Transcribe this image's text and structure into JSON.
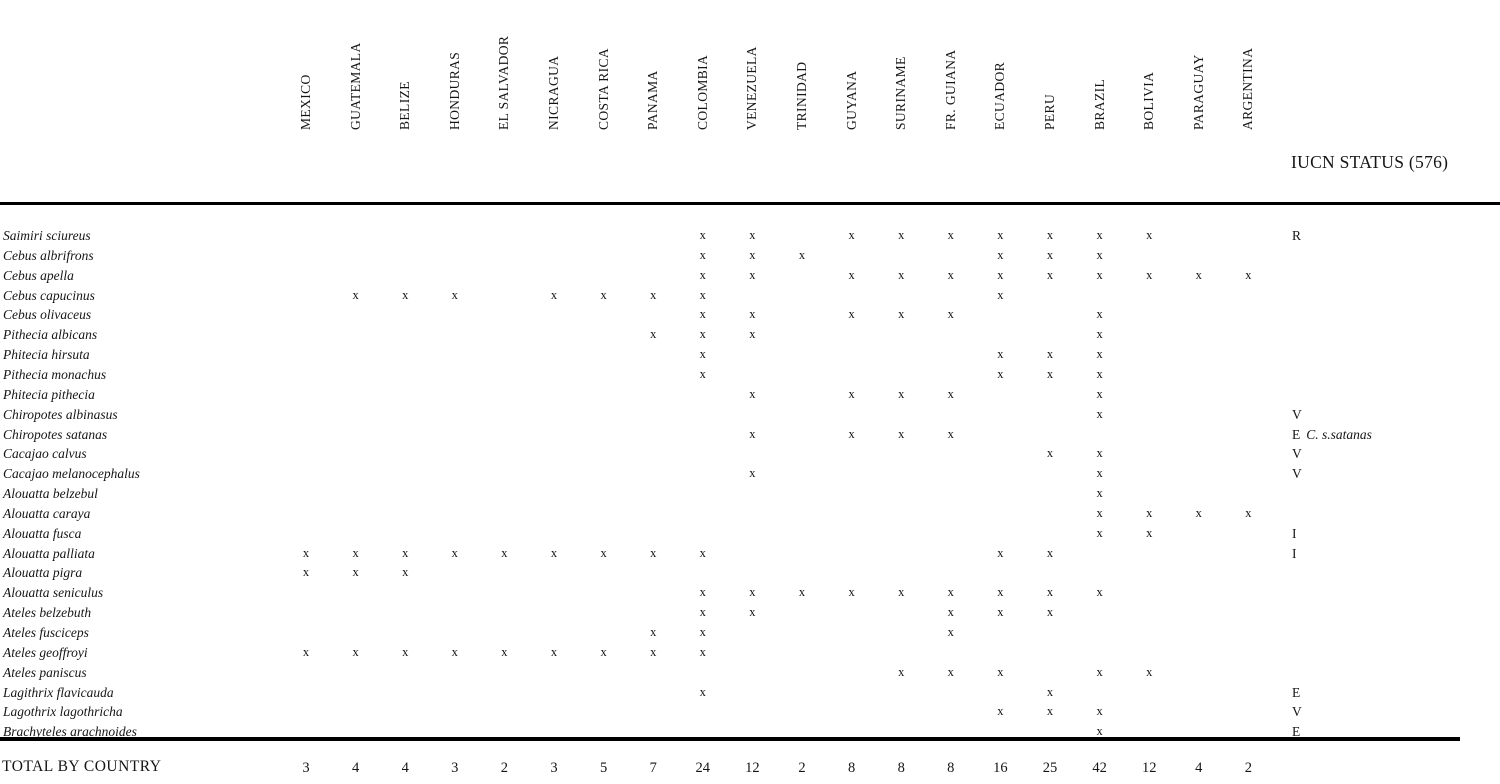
{
  "header": {
    "countries": [
      "MEXICO",
      "GUATEMALA",
      "BELIZE",
      "HONDURAS",
      "EL SALVADOR",
      "NICRAGUA",
      "COSTA RICA",
      "PANAMA",
      "COLOMBIA",
      "VENEZUELA",
      "TRINIDAD",
      "GUYANA",
      "SURINAME",
      "FR. GUIANA",
      "ECUADOR",
      "PERU",
      "BRAZIL",
      "BOLIVIA",
      "PARAGUAY",
      "ARGENTINA"
    ],
    "iucn_label": "IUCN STATUS (576)"
  },
  "table": {
    "mark_glyph": "x",
    "species": [
      {
        "name": "Saimiri sciureus",
        "countries": [
          "COLOMBIA",
          "VENEZUELA",
          "GUYANA",
          "SURINAME",
          "FR. GUIANA",
          "ECUADOR",
          "PERU",
          "BRAZIL",
          "BOLIVIA"
        ],
        "iucn": "R"
      },
      {
        "name": "Cebus albrifrons",
        "countries": [
          "COLOMBIA",
          "VENEZUELA",
          "TRINIDAD",
          "ECUADOR",
          "PERU",
          "BRAZIL"
        ],
        "iucn": ""
      },
      {
        "name": "Cebus apella",
        "countries": [
          "COLOMBIA",
          "VENEZUELA",
          "GUYANA",
          "SURINAME",
          "FR. GUIANA",
          "ECUADOR",
          "PERU",
          "BRAZIL",
          "BOLIVIA",
          "PARAGUAY",
          "ARGENTINA"
        ],
        "iucn": ""
      },
      {
        "name": "Cebus capucinus",
        "countries": [
          "GUATEMALA",
          "BELIZE",
          "HONDURAS",
          "NICRAGUA",
          "COSTA RICA",
          "PANAMA",
          "COLOMBIA",
          "ECUADOR"
        ],
        "iucn": ""
      },
      {
        "name": "Cebus olivaceus",
        "countries": [
          "COLOMBIA",
          "VENEZUELA",
          "GUYANA",
          "SURINAME",
          "FR. GUIANA",
          "BRAZIL"
        ],
        "iucn": ""
      },
      {
        "name": "Pithecia albicans",
        "countries": [
          "PANAMA",
          "COLOMBIA",
          "VENEZUELA",
          "BRAZIL"
        ],
        "iucn": ""
      },
      {
        "name": "Phitecia hirsuta",
        "countries": [
          "COLOMBIA",
          "ECUADOR",
          "PERU",
          "BRAZIL"
        ],
        "iucn": ""
      },
      {
        "name": "Pithecia monachus",
        "countries": [
          "COLOMBIA",
          "ECUADOR",
          "PERU",
          "BRAZIL"
        ],
        "iucn": ""
      },
      {
        "name": "Phitecia pithecia",
        "countries": [
          "VENEZUELA",
          "GUYANA",
          "SURINAME",
          "FR. GUIANA",
          "BRAZIL"
        ],
        "iucn": ""
      },
      {
        "name": "Chiropotes albinasus",
        "countries": [
          "BRAZIL"
        ],
        "iucn": "V"
      },
      {
        "name": "Chiropotes satanas",
        "countries": [
          "VENEZUELA",
          "GUYANA",
          "SURINAME",
          "FR. GUIANA"
        ],
        "iucn": "E",
        "iucn_note": "C. s.satanas"
      },
      {
        "name": "Cacajao calvus",
        "countries": [
          "PERU",
          "BRAZIL"
        ],
        "iucn": "V"
      },
      {
        "name": "Cacajao melanocephalus",
        "countries": [
          "VENEZUELA",
          "BRAZIL"
        ],
        "iucn": "V"
      },
      {
        "name": "Alouatta belzebul",
        "countries": [
          "BRAZIL"
        ],
        "iucn": ""
      },
      {
        "name": "Alouatta caraya",
        "countries": [
          "BRAZIL",
          "BOLIVIA",
          "PARAGUAY",
          "ARGENTINA"
        ],
        "iucn": ""
      },
      {
        "name": "Alouatta fusca",
        "countries": [
          "BRAZIL",
          "BOLIVIA"
        ],
        "iucn": "I"
      },
      {
        "name": "Alouatta palliata",
        "countries": [
          "MEXICO",
          "GUATEMALA",
          "BELIZE",
          "HONDURAS",
          "EL SALVADOR",
          "NICRAGUA",
          "COSTA RICA",
          "PANAMA",
          "COLOMBIA",
          "ECUADOR",
          "PERU"
        ],
        "iucn": "I"
      },
      {
        "name": "Alouatta pigra",
        "countries": [
          "MEXICO",
          "GUATEMALA",
          "BELIZE"
        ],
        "iucn": ""
      },
      {
        "name": "Alouatta seniculus",
        "countries": [
          "COLOMBIA",
          "VENEZUELA",
          "TRINIDAD",
          "GUYANA",
          "SURINAME",
          "FR. GUIANA",
          "ECUADOR",
          "PERU",
          "BRAZIL"
        ],
        "iucn": ""
      },
      {
        "name": "Ateles belzebuth",
        "countries": [
          "COLOMBIA",
          "VENEZUELA",
          "FR. GUIANA",
          "ECUADOR",
          "PERU"
        ],
        "iucn": ""
      },
      {
        "name": "Ateles fusciceps",
        "countries": [
          "PANAMA",
          "COLOMBIA",
          "FR. GUIANA"
        ],
        "iucn": ""
      },
      {
        "name": "Ateles geoffroyi",
        "countries": [
          "MEXICO",
          "GUATEMALA",
          "BELIZE",
          "HONDURAS",
          "EL SALVADOR",
          "NICRAGUA",
          "COSTA RICA",
          "PANAMA",
          "COLOMBIA"
        ],
        "iucn": ""
      },
      {
        "name": "Ateles paniscus",
        "countries": [
          "SURINAME",
          "FR. GUIANA",
          "ECUADOR",
          "BRAZIL",
          "BOLIVIA"
        ],
        "iucn": ""
      },
      {
        "name": "Lagithrix flavicauda",
        "countries": [
          "COLOMBIA",
          "PERU"
        ],
        "iucn": "E"
      },
      {
        "name": "Lagothrix lagothricha",
        "countries": [
          "ECUADOR",
          "PERU",
          "BRAZIL"
        ],
        "iucn": "V"
      },
      {
        "name": "Brachyteles arachnoides",
        "countries": [
          "BRAZIL"
        ],
        "iucn": "E"
      }
    ]
  },
  "totals": {
    "label": "TOTAL BY COUNTRY",
    "values": [
      3,
      4,
      4,
      3,
      2,
      3,
      5,
      7,
      24,
      12,
      2,
      8,
      8,
      8,
      16,
      25,
      42,
      12,
      4,
      2
    ]
  }
}
